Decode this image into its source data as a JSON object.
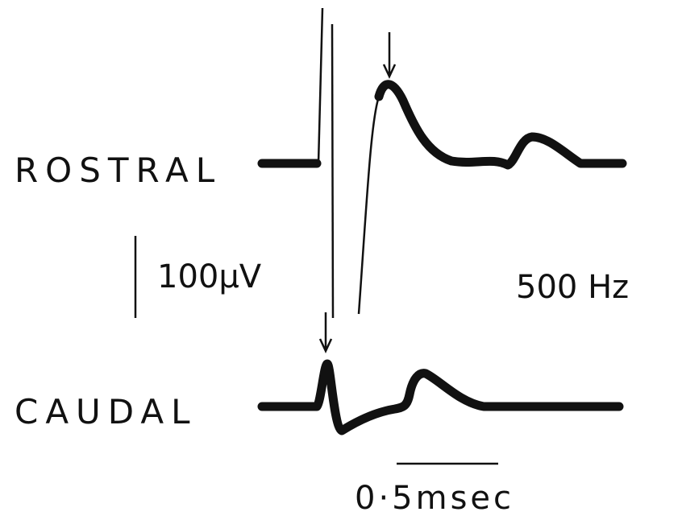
{
  "traces": {
    "rostral_label": "ROSTRAL",
    "caudal_label": "CAUDAL"
  },
  "scale": {
    "voltage": "100μV",
    "filter": "500 Hz",
    "time": "0·5msec"
  }
}
